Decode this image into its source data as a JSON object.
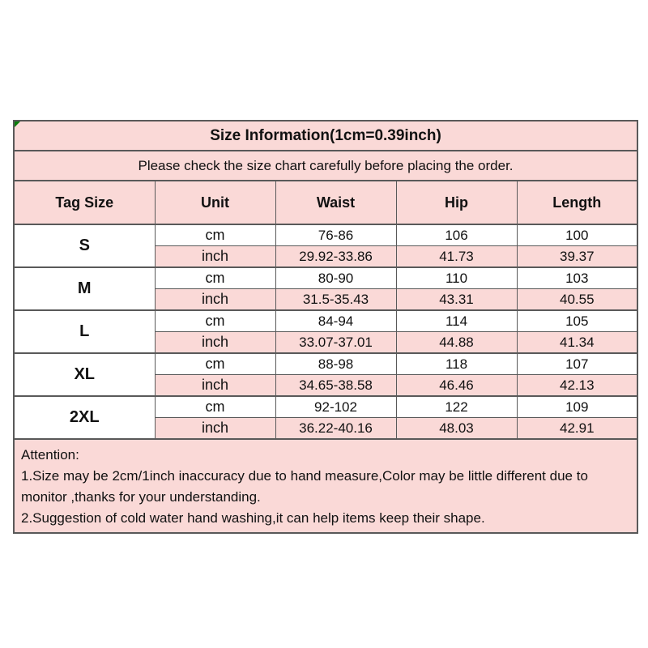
{
  "size_chart": {
    "title": "Size Information(1cm=0.39inch)",
    "subtitle": "Please check the size chart carefully before placing the order.",
    "columns": [
      "Tag Size",
      "Unit",
      "Waist",
      "Hip",
      "Length"
    ],
    "unit_row_labels": {
      "cm": "cm",
      "inch": "inch"
    },
    "sizes": [
      {
        "tag": "S",
        "cm": {
          "waist": "76-86",
          "hip": "106",
          "length": "100"
        },
        "inch": {
          "waist": "29.92-33.86",
          "hip": "41.73",
          "length": "39.37"
        }
      },
      {
        "tag": "M",
        "cm": {
          "waist": "80-90",
          "hip": "110",
          "length": "103"
        },
        "inch": {
          "waist": "31.5-35.43",
          "hip": "43.31",
          "length": "40.55"
        }
      },
      {
        "tag": "L",
        "cm": {
          "waist": "84-94",
          "hip": "114",
          "length": "105"
        },
        "inch": {
          "waist": "33.07-37.01",
          "hip": "44.88",
          "length": "41.34"
        }
      },
      {
        "tag": "XL",
        "cm": {
          "waist": "88-98",
          "hip": "118",
          "length": "107"
        },
        "inch": {
          "waist": "34.65-38.58",
          "hip": "46.46",
          "length": "42.13"
        }
      },
      {
        "tag": "2XL",
        "cm": {
          "waist": "92-102",
          "hip": "122",
          "length": "109"
        },
        "inch": {
          "waist": "36.22-40.16",
          "hip": "48.03",
          "length": "42.91"
        }
      }
    ],
    "notes": {
      "heading": "Attention:",
      "items": [
        "1.Size may be 2cm/1inch inaccuracy due to hand measure,Color may be little different due to monitor ,thanks for your understanding.",
        "2.Suggestion of cold water hand washing,it can help items keep their shape."
      ]
    },
    "colors": {
      "cell_pink": "#fad9d7",
      "cell_white": "#ffffff",
      "border_dark": "#595959",
      "border_light": "#9b9b9b",
      "text": "#111111",
      "corner_marker_green": "#0a7d0a"
    }
  }
}
